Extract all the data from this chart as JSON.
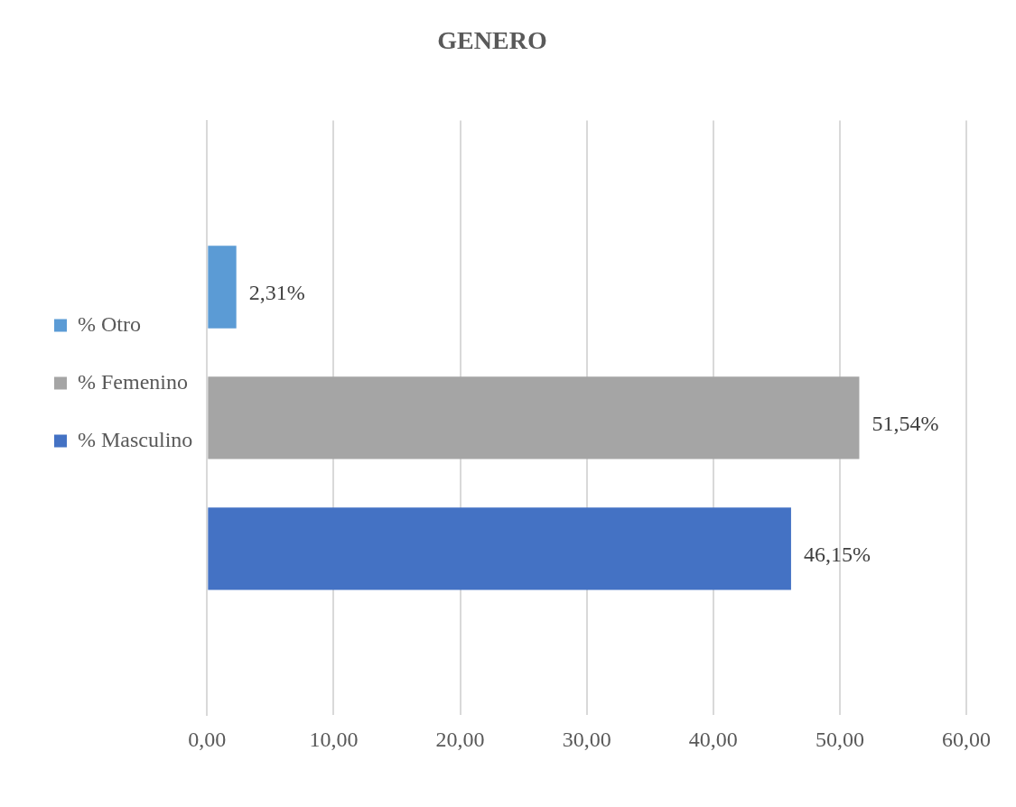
{
  "chart_data": {
    "type": "bar",
    "orientation": "horizontal",
    "title": "GENERO",
    "categories": [
      null
    ],
    "series": [
      {
        "name": "% Otro",
        "color": "#5b9bd5",
        "values": [
          2.31
        ],
        "value_labels": [
          "2,31%"
        ]
      },
      {
        "name": "% Femenino",
        "color": "#a5a5a5",
        "values": [
          51.54
        ],
        "value_labels": [
          "51,54%"
        ]
      },
      {
        "name": "% Masculino",
        "color": "#4472c4",
        "values": [
          46.15
        ],
        "value_labels": [
          "46,15%"
        ]
      }
    ],
    "xlim": [
      0,
      60
    ],
    "xticks": [
      {
        "value": 0,
        "label": "0,00"
      },
      {
        "value": 10,
        "label": "10,00"
      },
      {
        "value": 20,
        "label": "20,00"
      },
      {
        "value": 30,
        "label": "30,00"
      },
      {
        "value": 40,
        "label": "40,00"
      },
      {
        "value": 50,
        "label": "50,00"
      },
      {
        "value": 60,
        "label": "60,00"
      }
    ],
    "grid": "x",
    "legend": "left"
  }
}
